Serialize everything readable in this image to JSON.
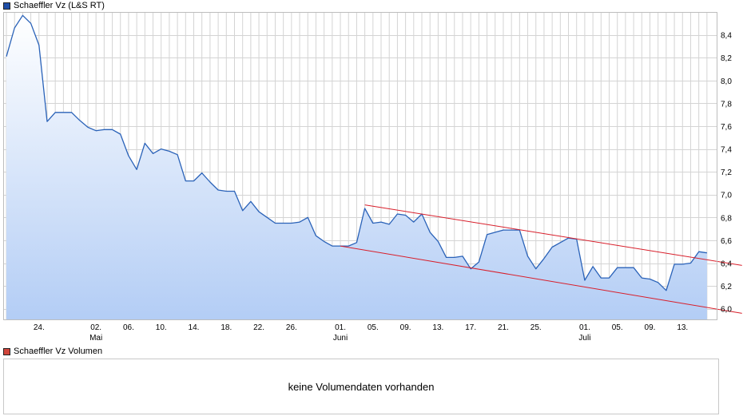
{
  "legend": {
    "price_label": "Schaeffler Vz (L&S RT)",
    "price_color": "#1f4fa8",
    "volume_label": "Schaeffler Vz Volumen",
    "volume_color": "#d0453b"
  },
  "volume_panel": {
    "message": "keine Volumendaten vorhanden"
  },
  "chart_data": {
    "type": "area",
    "title": "",
    "xlabel": "",
    "ylabel": "",
    "ylim": [
      5.9,
      8.6
    ],
    "yticks": [
      6.0,
      6.2,
      6.4,
      6.6,
      6.8,
      7.0,
      7.2,
      7.4,
      7.6,
      7.8,
      8.0,
      8.2,
      8.4
    ],
    "ytick_labels": [
      "6,0",
      "6,2",
      "6,4",
      "6,6",
      "6,8",
      "7,0",
      "7,2",
      "7,4",
      "7,6",
      "7,8",
      "8,0",
      "8,2",
      "8,4"
    ],
    "x_ticks": [
      {
        "i": 4,
        "label": "24."
      },
      {
        "i": 11,
        "label": "02.",
        "sub": "Mai"
      },
      {
        "i": 15,
        "label": "06."
      },
      {
        "i": 19,
        "label": "10."
      },
      {
        "i": 23,
        "label": "14."
      },
      {
        "i": 27,
        "label": "18."
      },
      {
        "i": 31,
        "label": "22."
      },
      {
        "i": 35,
        "label": "26."
      },
      {
        "i": 41,
        "label": "01.",
        "sub": "Juni"
      },
      {
        "i": 45,
        "label": "05."
      },
      {
        "i": 49,
        "label": "09."
      },
      {
        "i": 53,
        "label": "13."
      },
      {
        "i": 57,
        "label": "17."
      },
      {
        "i": 61,
        "label": "21."
      },
      {
        "i": 65,
        "label": "25."
      },
      {
        "i": 71,
        "label": "01.",
        "sub": "Juli"
      },
      {
        "i": 75,
        "label": "05."
      },
      {
        "i": 79,
        "label": "09."
      },
      {
        "i": 83,
        "label": "13."
      }
    ],
    "series": [
      {
        "values": [
          8.21,
          8.46,
          8.57,
          8.5,
          8.31,
          7.64,
          7.72,
          7.72,
          7.72,
          7.65,
          7.59,
          7.56,
          7.57,
          7.57,
          7.53,
          7.34,
          7.22,
          7.45,
          7.36,
          7.4,
          7.38,
          7.35,
          7.12,
          7.12,
          7.19,
          7.11,
          7.04,
          7.03,
          7.03,
          6.86,
          6.94,
          6.85,
          6.8,
          6.75,
          6.75,
          6.75,
          6.76,
          6.8,
          6.64,
          6.59,
          6.55,
          6.55,
          6.55,
          6.58,
          6.88,
          6.75,
          6.76,
          6.74,
          6.83,
          6.82,
          6.76,
          6.83,
          6.67,
          6.59,
          6.45,
          6.45,
          6.46,
          6.35,
          6.41,
          6.65,
          6.67,
          6.69,
          6.69,
          6.69,
          6.46,
          6.35,
          6.44,
          6.54,
          6.58,
          6.62,
          6.61,
          6.25,
          6.37,
          6.27,
          6.27,
          6.36,
          6.36,
          6.36,
          6.27,
          6.26,
          6.23,
          6.16,
          6.39,
          6.39,
          6.4,
          6.5,
          6.49
        ]
      }
    ],
    "trendlines": [
      {
        "from": {
          "i": 44,
          "y": 6.91
        },
        "to": {
          "i": 90.3,
          "y": 6.38
        },
        "color": "#d81e2a"
      },
      {
        "from": {
          "i": 41,
          "y": 6.55
        },
        "to": {
          "i": 90.3,
          "y": 5.96
        },
        "color": "#d81e2a"
      }
    ],
    "grid": true,
    "line_color": "#2a62b8",
    "fill_top_color": "#ffffff",
    "fill_bottom_color": "#b3cdf5",
    "grid_color": "#d4d4d4"
  }
}
